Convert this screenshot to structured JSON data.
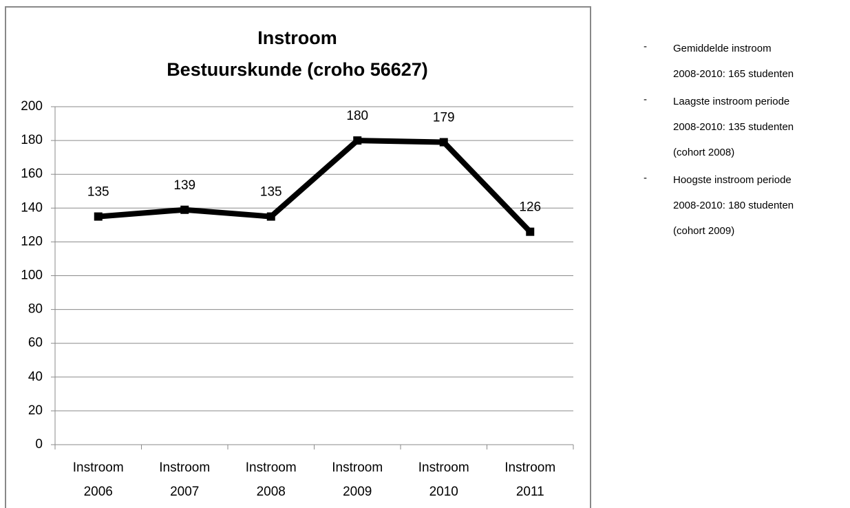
{
  "chart_data": {
    "type": "line",
    "title": [
      "Instroom",
      "Bestuurskunde (croho 56627)"
    ],
    "categories": [
      "Instroom 2006",
      "Instroom 2007",
      "Instroom 2008",
      "Instroom 2009",
      "Instroom 2010",
      "Instroom 2011"
    ],
    "values": [
      135,
      139,
      135,
      180,
      179,
      126
    ],
    "color": "#000000",
    "ylim": [
      0,
      200
    ],
    "yticks": [
      0,
      20,
      40,
      60,
      80,
      100,
      120,
      140,
      160,
      180,
      200
    ],
    "grid": true
  },
  "notes": [
    [
      "Gemiddelde instroom",
      "2008-2010: 165 studenten"
    ],
    [
      "Laagste instroom periode",
      "2008-2010: 135 studenten",
      "(cohort 2008)"
    ],
    [
      "Hoogste instroom periode",
      "2008-2010: 180 studenten",
      "(cohort 2009)"
    ]
  ]
}
